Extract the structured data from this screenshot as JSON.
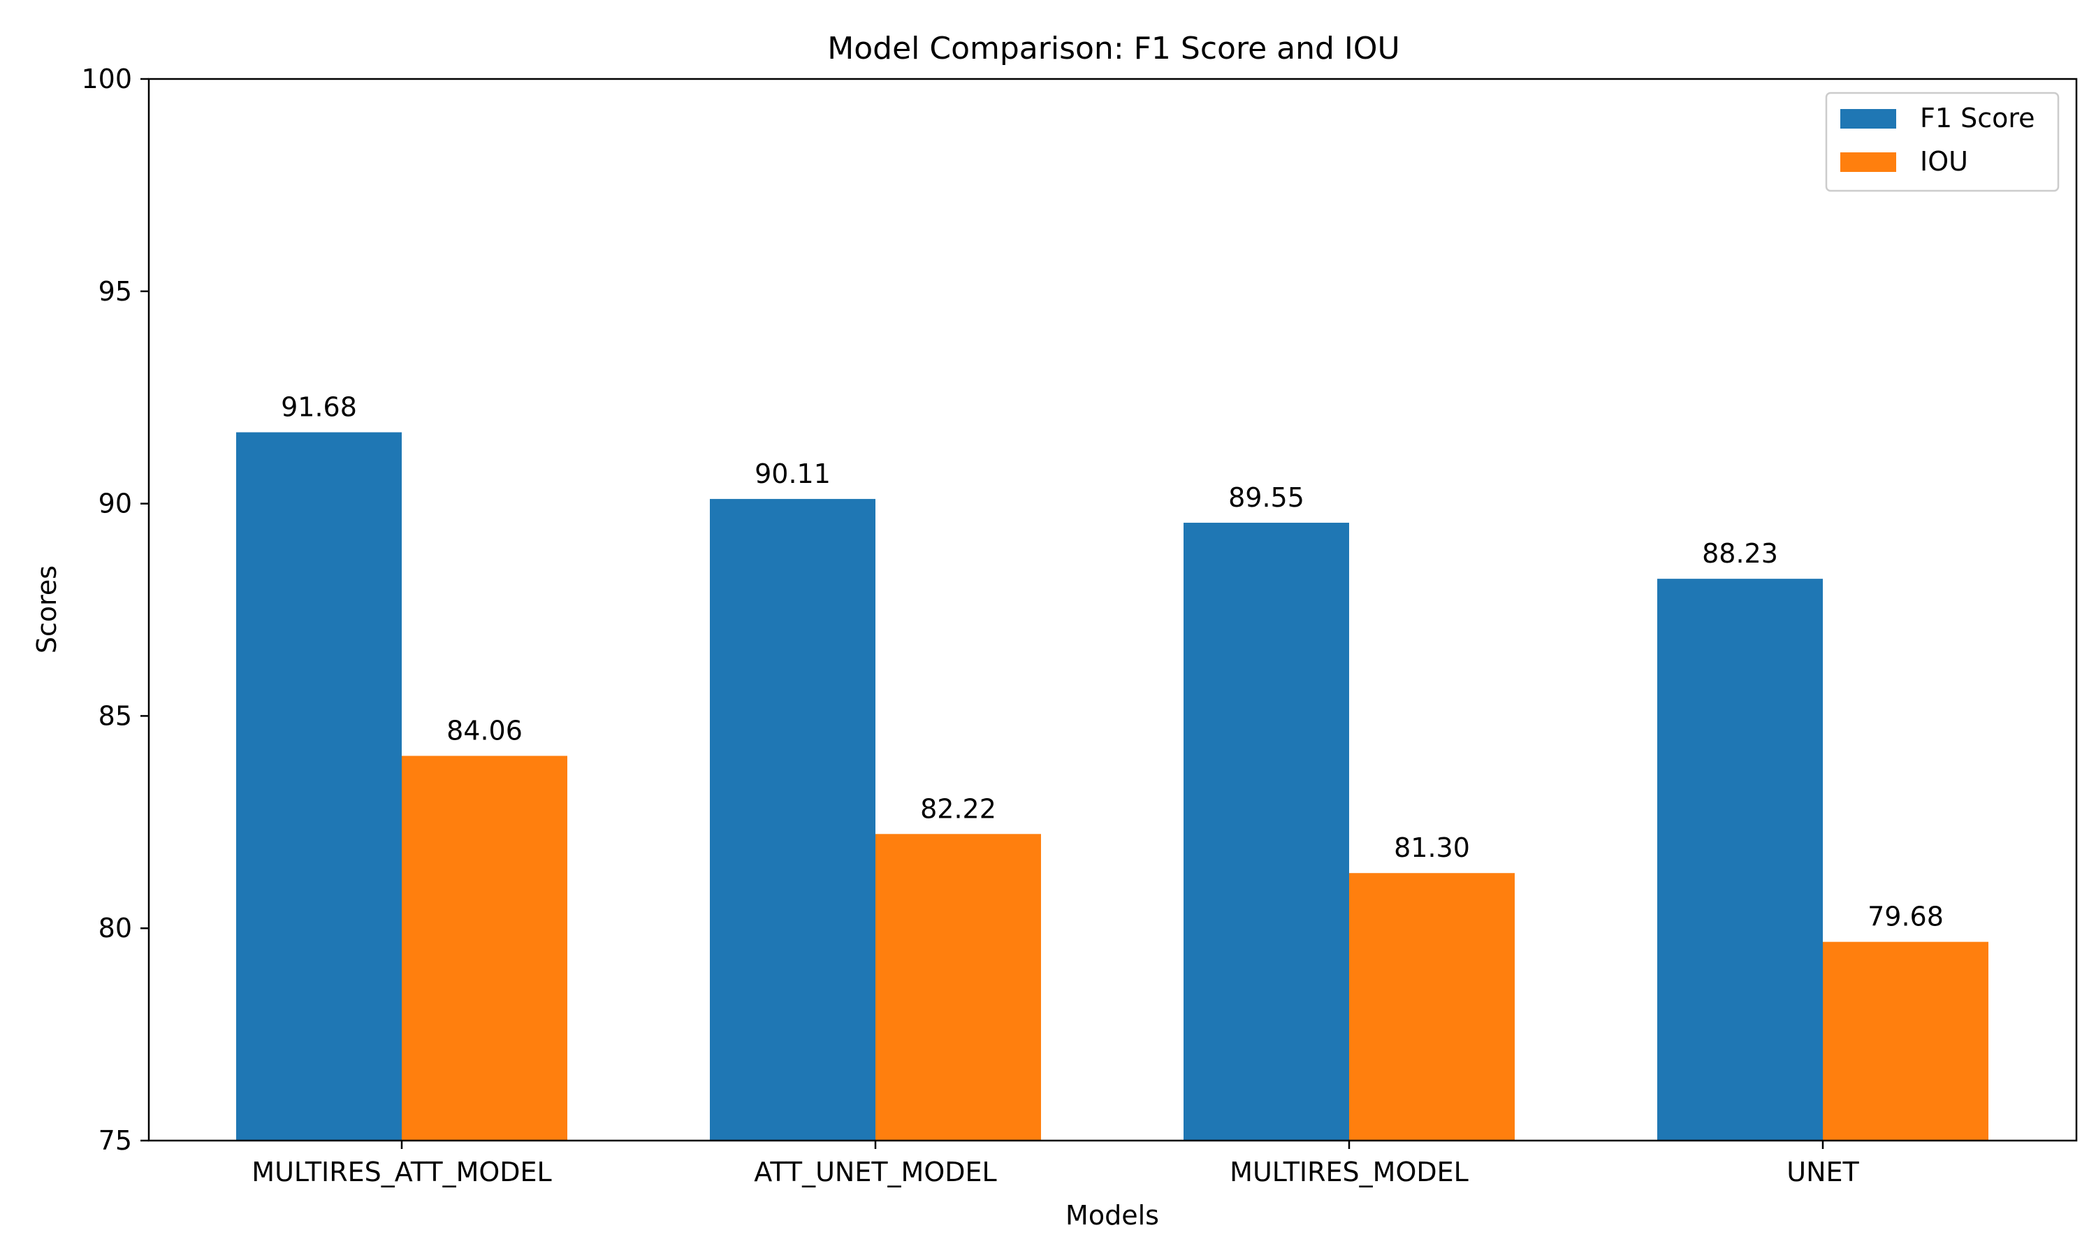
{
  "chart_data": {
    "type": "bar",
    "title": "Model Comparison: F1 Score and IOU",
    "xlabel": "Models",
    "ylabel": "Scores",
    "ylim": [
      75,
      100
    ],
    "yticks": [
      "75",
      "80",
      "85",
      "90",
      "95",
      "100"
    ],
    "categories": [
      "MULTIRES_ATT_MODEL",
      "ATT_UNET_MODEL",
      "MULTIRES_MODEL",
      "UNET"
    ],
    "series": [
      {
        "name": "F1 Score",
        "color": "#1f77b4",
        "values": [
          91.68,
          90.11,
          89.55,
          88.23
        ],
        "labels": [
          "91.68",
          "90.11",
          "89.55",
          "88.23"
        ]
      },
      {
        "name": "IOU",
        "color": "#ff7f0e",
        "values": [
          84.06,
          82.22,
          81.3,
          79.68
        ],
        "labels": [
          "84.06",
          "82.22",
          "81.30",
          "79.68"
        ]
      }
    ],
    "legend_position": "top-right",
    "grid": false
  }
}
